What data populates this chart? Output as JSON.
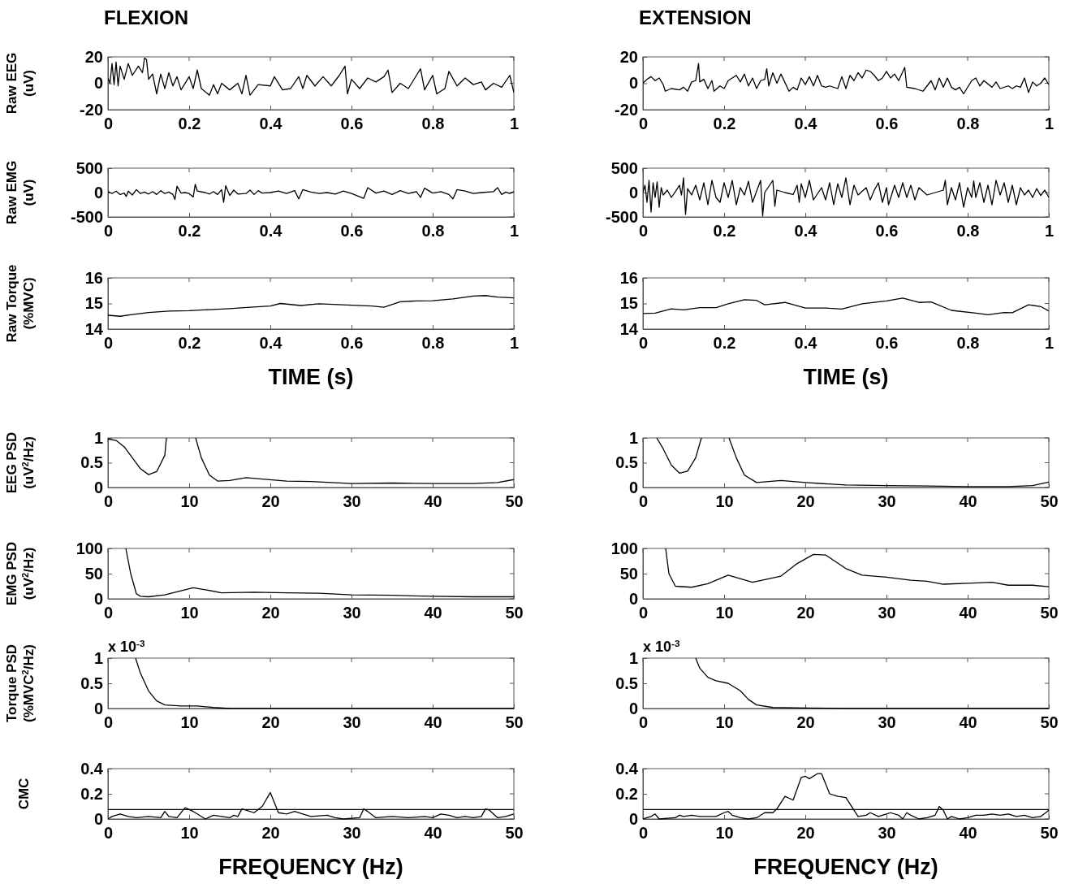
{
  "chart_data": [
    {
      "type": "line",
      "title": "FLEXION",
      "ylabel": "Raw EEG\n(uV)",
      "color": "#000000",
      "xlim": [
        0,
        1
      ],
      "ylim": [
        -20,
        20
      ],
      "xticks": [
        0,
        0.2,
        0.4,
        0.6,
        0.8,
        1
      ],
      "yticks": [
        -20,
        0,
        20
      ],
      "x": [
        0,
        0.005,
        0.01,
        0.015,
        0.02,
        0.025,
        0.03,
        0.04,
        0.05,
        0.06,
        0.075,
        0.085,
        0.09,
        0.095,
        0.1,
        0.11,
        0.12,
        0.13,
        0.14,
        0.15,
        0.16,
        0.17,
        0.18,
        0.2,
        0.21,
        0.22,
        0.23,
        0.25,
        0.26,
        0.27,
        0.28,
        0.3,
        0.32,
        0.33,
        0.34,
        0.35,
        0.37,
        0.4,
        0.41,
        0.43,
        0.45,
        0.47,
        0.48,
        0.49,
        0.51,
        0.53,
        0.55,
        0.57,
        0.584,
        0.59,
        0.6,
        0.62,
        0.64,
        0.66,
        0.68,
        0.69,
        0.7,
        0.72,
        0.74,
        0.76,
        0.77,
        0.78,
        0.8,
        0.81,
        0.83,
        0.84,
        0.86,
        0.88,
        0.9,
        0.92,
        0.93,
        0.95,
        0.97,
        0.99,
        1
      ],
      "values": [
        4,
        0,
        15,
        -1,
        16,
        -2,
        13,
        3,
        15,
        6,
        13,
        8,
        19,
        18,
        3,
        7,
        -8,
        7,
        -4,
        8,
        -2,
        5,
        -5,
        5,
        -4,
        10,
        -4,
        -9,
        -1,
        -8,
        0,
        -5,
        0,
        -8,
        6,
        -9,
        -1,
        -2,
        5,
        -5,
        -4,
        5,
        -4,
        6,
        -2,
        5,
        -2,
        6,
        13,
        -8,
        3,
        -4,
        4,
        1,
        5,
        10,
        -7,
        0,
        -4,
        6,
        11,
        -5,
        6,
        -8,
        -4,
        9,
        -2,
        4,
        -1,
        1,
        -5,
        0,
        -3,
        6,
        -7
      ]
    },
    {
      "type": "line",
      "title": "EXTENSION",
      "color": "#000000",
      "xlim": [
        0,
        1
      ],
      "ylim": [
        -20,
        20
      ],
      "xticks": [
        0,
        0.2,
        0.4,
        0.6,
        0.8,
        1
      ],
      "yticks": [
        -20,
        0,
        20
      ],
      "x": [
        0,
        0.01,
        0.02,
        0.03,
        0.04,
        0.05,
        0.055,
        0.07,
        0.09,
        0.1,
        0.11,
        0.12,
        0.13,
        0.137,
        0.14,
        0.15,
        0.16,
        0.17,
        0.175,
        0.19,
        0.2,
        0.21,
        0.23,
        0.24,
        0.25,
        0.26,
        0.27,
        0.28,
        0.29,
        0.3,
        0.305,
        0.31,
        0.32,
        0.33,
        0.34,
        0.36,
        0.37,
        0.38,
        0.39,
        0.4,
        0.41,
        0.42,
        0.43,
        0.44,
        0.45,
        0.46,
        0.48,
        0.49,
        0.5,
        0.51,
        0.52,
        0.53,
        0.54,
        0.55,
        0.56,
        0.57,
        0.58,
        0.59,
        0.6,
        0.61,
        0.62,
        0.63,
        0.645,
        0.65,
        0.67,
        0.69,
        0.7,
        0.71,
        0.72,
        0.73,
        0.74,
        0.75,
        0.76,
        0.77,
        0.78,
        0.79,
        0.81,
        0.82,
        0.83,
        0.84,
        0.86,
        0.87,
        0.88,
        0.9,
        0.91,
        0.92,
        0.93,
        0.94,
        0.95,
        0.96,
        0.97,
        0.98,
        0.99,
        1
      ],
      "values": [
        0,
        3,
        5,
        2,
        4,
        -1,
        -6,
        -4,
        -5,
        -3,
        -6,
        1,
        2,
        15,
        1,
        3,
        -4,
        2,
        -6,
        -2,
        -4,
        2,
        6,
        1,
        7,
        -2,
        4,
        -4,
        2,
        3,
        11,
        -2,
        8,
        0,
        7,
        -6,
        -3,
        -5,
        4,
        -1,
        5,
        -2,
        6,
        -2,
        -3,
        -2,
        -4,
        5,
        -4,
        6,
        2,
        8,
        4,
        10,
        9,
        6,
        2,
        4,
        9,
        4,
        7,
        2,
        12,
        -3,
        -4,
        -6,
        -2,
        2,
        -5,
        4,
        -3,
        4,
        -3,
        -5,
        -3,
        -8,
        2,
        4,
        -2,
        2,
        -3,
        1,
        -4,
        -2,
        -4,
        -2,
        -3,
        4,
        -7,
        1,
        -2,
        0,
        4,
        -1
      ]
    },
    {
      "type": "line",
      "ylabel": "Raw EMG\n(uV)",
      "color": "#000000",
      "xlim": [
        0,
        1
      ],
      "ylim": [
        -500,
        500
      ],
      "xticks": [
        0,
        0.2,
        0.4,
        0.6,
        0.8,
        1
      ],
      "yticks": [
        -500,
        0,
        500
      ],
      "x": [
        0,
        0.01,
        0.02,
        0.03,
        0.04,
        0.045,
        0.05,
        0.06,
        0.07,
        0.08,
        0.09,
        0.1,
        0.11,
        0.12,
        0.13,
        0.14,
        0.15,
        0.16,
        0.165,
        0.17,
        0.18,
        0.19,
        0.2,
        0.21,
        0.215,
        0.22,
        0.24,
        0.25,
        0.26,
        0.27,
        0.28,
        0.285,
        0.29,
        0.3,
        0.31,
        0.32,
        0.34,
        0.35,
        0.36,
        0.37,
        0.38,
        0.4,
        0.42,
        0.44,
        0.46,
        0.47,
        0.48,
        0.5,
        0.52,
        0.54,
        0.56,
        0.58,
        0.6,
        0.63,
        0.64,
        0.66,
        0.68,
        0.7,
        0.72,
        0.74,
        0.76,
        0.77,
        0.78,
        0.8,
        0.82,
        0.84,
        0.85,
        0.86,
        0.88,
        0.9,
        0.92,
        0.95,
        0.96,
        0.97,
        0.98,
        0.99,
        1
      ],
      "values": [
        20,
        -20,
        30,
        -40,
        -10,
        -80,
        30,
        -50,
        60,
        -20,
        10,
        -30,
        20,
        -40,
        40,
        -20,
        10,
        -40,
        -140,
        130,
        -10,
        0,
        -20,
        -90,
        170,
        30,
        0,
        -30,
        20,
        -40,
        60,
        -200,
        140,
        -60,
        50,
        -30,
        -20,
        50,
        -40,
        40,
        -10,
        0,
        30,
        -20,
        40,
        -130,
        60,
        10,
        -20,
        0,
        -30,
        30,
        -20,
        -120,
        100,
        -10,
        30,
        -40,
        40,
        -20,
        20,
        -100,
        90,
        -10,
        20,
        -40,
        -130,
        60,
        30,
        -20,
        0,
        20,
        100,
        -40,
        10,
        -20,
        20
      ]
    },
    {
      "type": "line",
      "color": "#000000",
      "xlim": [
        0,
        1
      ],
      "ylim": [
        -500,
        500
      ],
      "xticks": [
        0,
        0.2,
        0.4,
        0.6,
        0.8,
        1
      ],
      "yticks": [
        -500,
        0,
        500
      ],
      "x": [
        0,
        0.005,
        0.01,
        0.015,
        0.02,
        0.025,
        0.03,
        0.035,
        0.04,
        0.045,
        0.05,
        0.06,
        0.07,
        0.08,
        0.09,
        0.095,
        0.1,
        0.105,
        0.11,
        0.12,
        0.13,
        0.14,
        0.15,
        0.16,
        0.17,
        0.18,
        0.19,
        0.2,
        0.21,
        0.22,
        0.23,
        0.24,
        0.25,
        0.26,
        0.27,
        0.28,
        0.29,
        0.295,
        0.3,
        0.32,
        0.325,
        0.33,
        0.35,
        0.37,
        0.38,
        0.385,
        0.39,
        0.4,
        0.41,
        0.42,
        0.44,
        0.45,
        0.46,
        0.47,
        0.48,
        0.49,
        0.5,
        0.51,
        0.52,
        0.53,
        0.55,
        0.56,
        0.57,
        0.58,
        0.59,
        0.6,
        0.605,
        0.62,
        0.63,
        0.64,
        0.65,
        0.66,
        0.67,
        0.68,
        0.7,
        0.72,
        0.74,
        0.745,
        0.75,
        0.76,
        0.77,
        0.78,
        0.79,
        0.8,
        0.81,
        0.815,
        0.82,
        0.83,
        0.84,
        0.85,
        0.86,
        0.87,
        0.88,
        0.89,
        0.9,
        0.91,
        0.92,
        0.93,
        0.94,
        0.95,
        0.96,
        0.97,
        0.98,
        0.99,
        1
      ],
      "values": [
        0,
        150,
        -200,
        250,
        -400,
        200,
        -100,
        220,
        -300,
        100,
        -50,
        50,
        -100,
        20,
        150,
        -50,
        300,
        -450,
        80,
        -50,
        150,
        -150,
        200,
        -250,
        250,
        -100,
        -200,
        200,
        -100,
        250,
        -250,
        100,
        -50,
        230,
        -200,
        30,
        250,
        -480,
        0,
        250,
        -280,
        50,
        0,
        -40,
        150,
        -200,
        180,
        -100,
        250,
        -150,
        100,
        -150,
        200,
        -250,
        180,
        -100,
        300,
        -250,
        150,
        -50,
        100,
        -150,
        50,
        200,
        -200,
        100,
        -250,
        150,
        -100,
        200,
        -100,
        150,
        -150,
        100,
        -50,
        0,
        50,
        250,
        -250,
        100,
        -150,
        200,
        -300,
        100,
        -100,
        240,
        -100,
        200,
        -200,
        150,
        -250,
        250,
        -50,
        200,
        -200,
        150,
        -250,
        100,
        -50,
        50,
        -100,
        80,
        -60,
        50,
        -100
      ]
    },
    {
      "type": "line",
      "ylabel": "Raw Torque\n(%MVC)",
      "xlabel": "TIME (s)",
      "color": "#000000",
      "xlim": [
        0,
        1
      ],
      "ylim": [
        14,
        16
      ],
      "xticks": [
        0,
        0.2,
        0.4,
        0.6,
        0.8,
        1
      ],
      "yticks": [
        14,
        15,
        16
      ],
      "x": [
        0,
        0.03,
        0.06,
        0.1,
        0.15,
        0.2,
        0.25,
        0.3,
        0.35,
        0.4,
        0.425,
        0.475,
        0.52,
        0.6,
        0.65,
        0.68,
        0.72,
        0.76,
        0.8,
        0.85,
        0.9,
        0.93,
        0.96,
        1
      ],
      "values": [
        14.54,
        14.5,
        14.57,
        14.65,
        14.7,
        14.72,
        14.76,
        14.8,
        14.85,
        14.9,
        15.0,
        14.92,
        14.99,
        14.93,
        14.9,
        14.85,
        15.07,
        15.1,
        15.11,
        15.18,
        15.29,
        15.31,
        15.25,
        15.22
      ]
    },
    {
      "type": "line",
      "xlabel": "TIME (s)",
      "color": "#000000",
      "xlim": [
        0,
        1
      ],
      "ylim": [
        14,
        16
      ],
      "xticks": [
        0,
        0.2,
        0.4,
        0.6,
        0.8,
        1
      ],
      "yticks": [
        14,
        15,
        16
      ],
      "x": [
        0,
        0.03,
        0.07,
        0.1,
        0.14,
        0.18,
        0.21,
        0.25,
        0.28,
        0.3,
        0.35,
        0.4,
        0.45,
        0.49,
        0.54,
        0.6,
        0.64,
        0.68,
        0.71,
        0.76,
        0.82,
        0.85,
        0.89,
        0.91,
        0.95,
        0.98,
        1
      ],
      "values": [
        14.61,
        14.62,
        14.79,
        14.75,
        14.84,
        14.84,
        14.99,
        15.15,
        15.12,
        14.95,
        15.04,
        14.82,
        14.82,
        14.78,
        14.99,
        15.1,
        15.21,
        15.04,
        15.06,
        14.73,
        14.62,
        14.56,
        14.65,
        14.64,
        14.95,
        14.88,
        14.71
      ]
    },
    {
      "type": "line",
      "ylabel": "EEG PSD\n(uV$^{2}$/Hz)",
      "color": "#000000",
      "xlim": [
        0,
        50
      ],
      "ylim": [
        0,
        1
      ],
      "xticks": [
        0,
        10,
        20,
        30,
        40,
        50
      ],
      "yticks": [
        0,
        0.5,
        1
      ],
      "x": [
        0,
        1,
        2,
        3,
        4,
        5,
        6,
        7,
        7.2,
        9,
        10.8,
        11.5,
        12.5,
        13.5,
        15,
        17,
        19,
        22,
        25,
        30,
        35,
        40,
        45,
        48,
        50
      ],
      "values": [
        0.98,
        0.95,
        0.82,
        0.6,
        0.38,
        0.26,
        0.32,
        0.65,
        1,
        null,
        1,
        0.6,
        0.25,
        0.13,
        0.14,
        0.2,
        0.17,
        0.13,
        0.12,
        0.08,
        0.09,
        0.08,
        0.08,
        0.1,
        0.16
      ]
    },
    {
      "type": "line",
      "color": "#000000",
      "xlim": [
        0,
        50
      ],
      "ylim": [
        0,
        1
      ],
      "xticks": [
        0,
        10,
        20,
        30,
        40,
        50
      ],
      "yticks": [
        0,
        0.5,
        1
      ],
      "x": [
        1.7,
        2.5,
        3.5,
        4.5,
        5.5,
        6.5,
        7.2,
        9,
        10.6,
        11.5,
        12.5,
        14,
        17,
        20,
        25,
        30,
        35,
        40,
        45,
        48,
        50
      ],
      "values": [
        1,
        0.78,
        0.45,
        0.29,
        0.33,
        0.6,
        1,
        null,
        1,
        0.6,
        0.25,
        0.1,
        0.14,
        0.1,
        0.05,
        0.04,
        0.03,
        0.02,
        0.02,
        0.04,
        0.11
      ]
    },
    {
      "type": "line",
      "ylabel": "EMG PSD\n(uV$^{2}$/Hz)",
      "color": "#000000",
      "xlim": [
        0,
        50
      ],
      "ylim": [
        0,
        100
      ],
      "xticks": [
        0,
        10,
        20,
        30,
        40,
        50
      ],
      "yticks": [
        0,
        50,
        100
      ],
      "x": [
        2.2,
        2.8,
        3.5,
        4,
        5,
        7,
        9,
        10.5,
        12,
        14,
        18,
        22,
        26,
        30,
        35,
        40,
        45,
        50
      ],
      "values": [
        100,
        50,
        10,
        5,
        4,
        8,
        16,
        22,
        18,
        12,
        13,
        12,
        11,
        8,
        7,
        5,
        4,
        4
      ]
    },
    {
      "type": "line",
      "color": "#000000",
      "xlim": [
        0,
        50
      ],
      "ylim": [
        0,
        100
      ],
      "xticks": [
        0,
        10,
        20,
        30,
        40,
        50
      ],
      "yticks": [
        0,
        50,
        100
      ],
      "x": [
        2.8,
        3.2,
        4,
        6,
        8,
        10.5,
        13.5,
        17,
        19,
        21,
        22.5,
        25,
        27,
        30,
        33,
        35,
        37,
        40,
        43,
        45,
        48,
        50
      ],
      "values": [
        100,
        50,
        25,
        23,
        30,
        47,
        33,
        45,
        70,
        88,
        87,
        60,
        47,
        43,
        37,
        35,
        29,
        31,
        33,
        27,
        27,
        24
      ]
    },
    {
      "type": "line",
      "ylabel": "Torque PSD\n(%MVC$^{2}$/Hz)",
      "annotations": [
        "x 10$^{-3}$"
      ],
      "color": "#000000",
      "xlim": [
        0,
        50
      ],
      "ylim": [
        0,
        1
      ],
      "xticks": [
        0,
        10,
        20,
        30,
        40,
        50
      ],
      "yticks": [
        0,
        0.5,
        1
      ],
      "x": [
        3.4,
        4,
        5,
        6,
        7,
        9,
        11,
        13,
        15,
        20,
        30,
        50
      ],
      "values": [
        1,
        0.7,
        0.35,
        0.15,
        0.07,
        0.05,
        0.05,
        0.02,
        0,
        0,
        0,
        0
      ]
    },
    {
      "type": "line",
      "annotations": [
        "x 10$^{-3}$"
      ],
      "color": "#000000",
      "xlim": [
        0,
        50
      ],
      "ylim": [
        0,
        1
      ],
      "xticks": [
        0,
        10,
        20,
        30,
        40,
        50
      ],
      "yticks": [
        0,
        0.5,
        1
      ],
      "x": [
        6.5,
        7,
        8,
        9,
        10.5,
        12,
        13,
        14,
        16,
        20,
        25,
        50
      ],
      "values": [
        1,
        0.8,
        0.62,
        0.55,
        0.5,
        0.35,
        0.18,
        0.07,
        0.02,
        0.01,
        0,
        0
      ]
    },
    {
      "type": "line",
      "ylabel": "CMC",
      "xlabel": "FREQUENCY (Hz)",
      "color": "#000000",
      "xlim": [
        0,
        50
      ],
      "ylim": [
        0,
        0.4
      ],
      "xticks": [
        0,
        10,
        20,
        30,
        40,
        50
      ],
      "yticks": [
        0,
        0.2,
        0.4
      ],
      "ref_lines": [
        {
          "axis": "y",
          "value": 0.075,
          "color": "#000000"
        }
      ],
      "x": [
        0,
        0.5,
        1.5,
        2.5,
        3.5,
        5,
        6.5,
        7,
        7.5,
        8.5,
        9.5,
        10.5,
        11,
        12,
        13,
        14,
        15,
        15.5,
        16,
        16.5,
        17,
        18,
        19,
        20,
        21,
        22,
        23,
        24,
        25,
        27,
        28,
        29,
        31,
        31.5,
        32,
        33,
        35,
        37,
        39,
        40,
        41,
        42,
        43,
        44,
        45,
        46,
        46.5,
        47,
        48,
        49,
        50
      ],
      "values": [
        0,
        0.02,
        0.04,
        0.02,
        0.01,
        0.02,
        0.01,
        0.06,
        0.02,
        0.01,
        0.09,
        0.06,
        0.04,
        0,
        0.03,
        0.02,
        0.01,
        0.03,
        0.02,
        0.08,
        0.07,
        0.05,
        0.1,
        0.21,
        0.05,
        0.04,
        0.06,
        0.04,
        0.02,
        0.03,
        0.01,
        0,
        0.01,
        0.08,
        0.06,
        0.01,
        0.02,
        0.01,
        0.02,
        0.01,
        0.04,
        0.03,
        0.01,
        0.02,
        0.01,
        0.02,
        0.08,
        0.07,
        0.01,
        0.02,
        0.04
      ]
    },
    {
      "type": "line",
      "xlabel": "FREQUENCY (Hz)",
      "color": "#000000",
      "xlim": [
        0,
        50
      ],
      "ylim": [
        0,
        0.4
      ],
      "xticks": [
        0,
        10,
        20,
        30,
        40,
        50
      ],
      "yticks": [
        0,
        0.2,
        0.4
      ],
      "ref_lines": [
        {
          "axis": "y",
          "value": 0.075,
          "color": "#000000"
        }
      ],
      "x": [
        0,
        1,
        1.5,
        2,
        4,
        4.5,
        5,
        6,
        7,
        9,
        10,
        10.5,
        11,
        12,
        13,
        14,
        15,
        16,
        16.5,
        17.5,
        18.5,
        19.5,
        20,
        20.5,
        21.5,
        22,
        23,
        24,
        25,
        25.5,
        26.5,
        27.5,
        28,
        29,
        30,
        30.5,
        31.5,
        32,
        32.5,
        33,
        34,
        35,
        36,
        36.5,
        37,
        37.5,
        38,
        39,
        40,
        41,
        42,
        43,
        44,
        45,
        46,
        47,
        48,
        49,
        50
      ],
      "values": [
        0,
        0.02,
        0.04,
        0,
        0.01,
        0.03,
        0.02,
        0.03,
        0.02,
        0.02,
        0.05,
        0.06,
        0.03,
        0.01,
        0,
        0.01,
        0.05,
        0.05,
        0.08,
        0.18,
        0.15,
        0.33,
        0.34,
        0.32,
        0.36,
        0.36,
        0.2,
        0.18,
        0.17,
        0.12,
        0.02,
        0.03,
        0.05,
        0.02,
        0.04,
        0.05,
        0.03,
        0,
        0.05,
        0.03,
        0,
        0.01,
        0.03,
        0.1,
        0.07,
        0,
        0.02,
        0,
        0.01,
        0.03,
        0.03,
        0.04,
        0.03,
        0.04,
        0.02,
        0.03,
        0.01,
        0.02,
        0.07
      ]
    }
  ]
}
